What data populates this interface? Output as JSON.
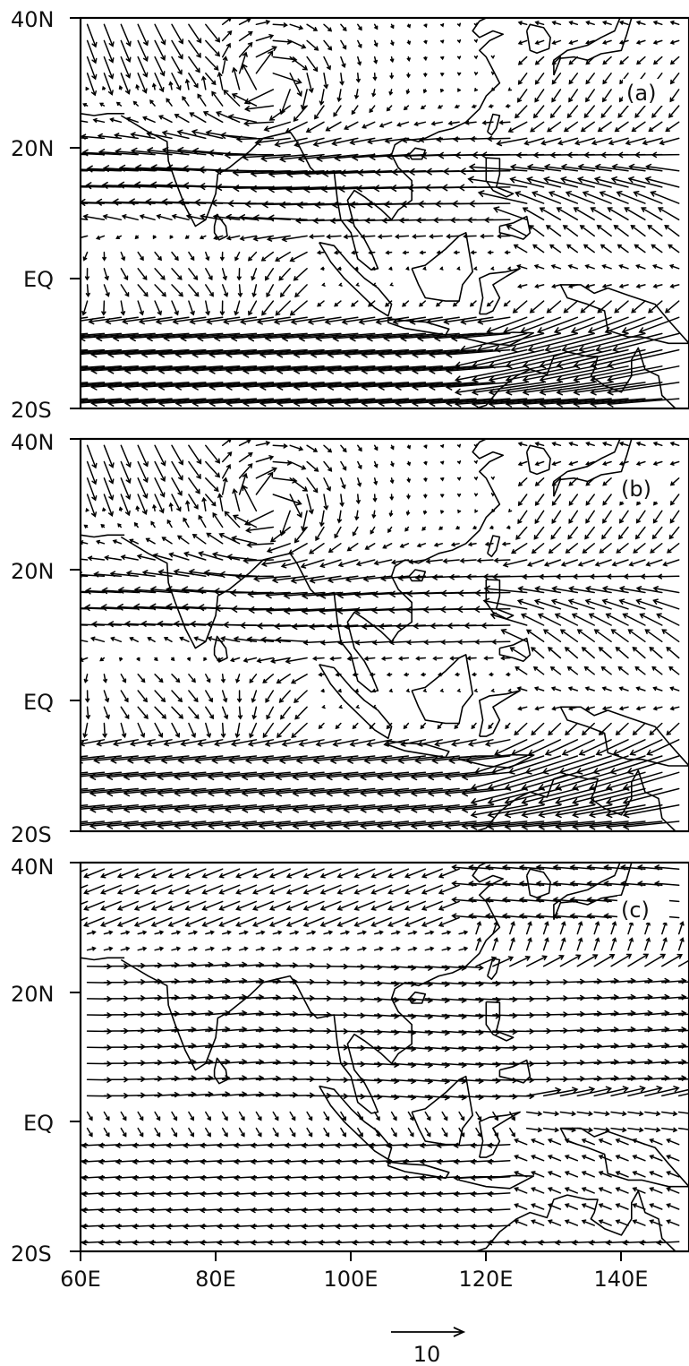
{
  "figure": {
    "x_ticks": [
      "60E",
      "80E",
      "100E",
      "120E",
      "140E"
    ],
    "y_ticks": [
      "40N",
      "20N",
      "EQ",
      "20S"
    ],
    "reference_vector": {
      "label": "10",
      "magnitude": 10
    }
  },
  "panels": [
    {
      "id": "a",
      "label": "(a)",
      "field": "a"
    },
    {
      "id": "b",
      "label": "(b)",
      "field": "b"
    },
    {
      "id": "c",
      "label": "(c)",
      "field": "c"
    }
  ],
  "map": {
    "lon_range": [
      60,
      150
    ],
    "lat_range": [
      -20,
      40
    ],
    "grid_spacing_deg": 2.5,
    "colors": {
      "ink": "#000000",
      "background": "#ffffff"
    }
  }
}
